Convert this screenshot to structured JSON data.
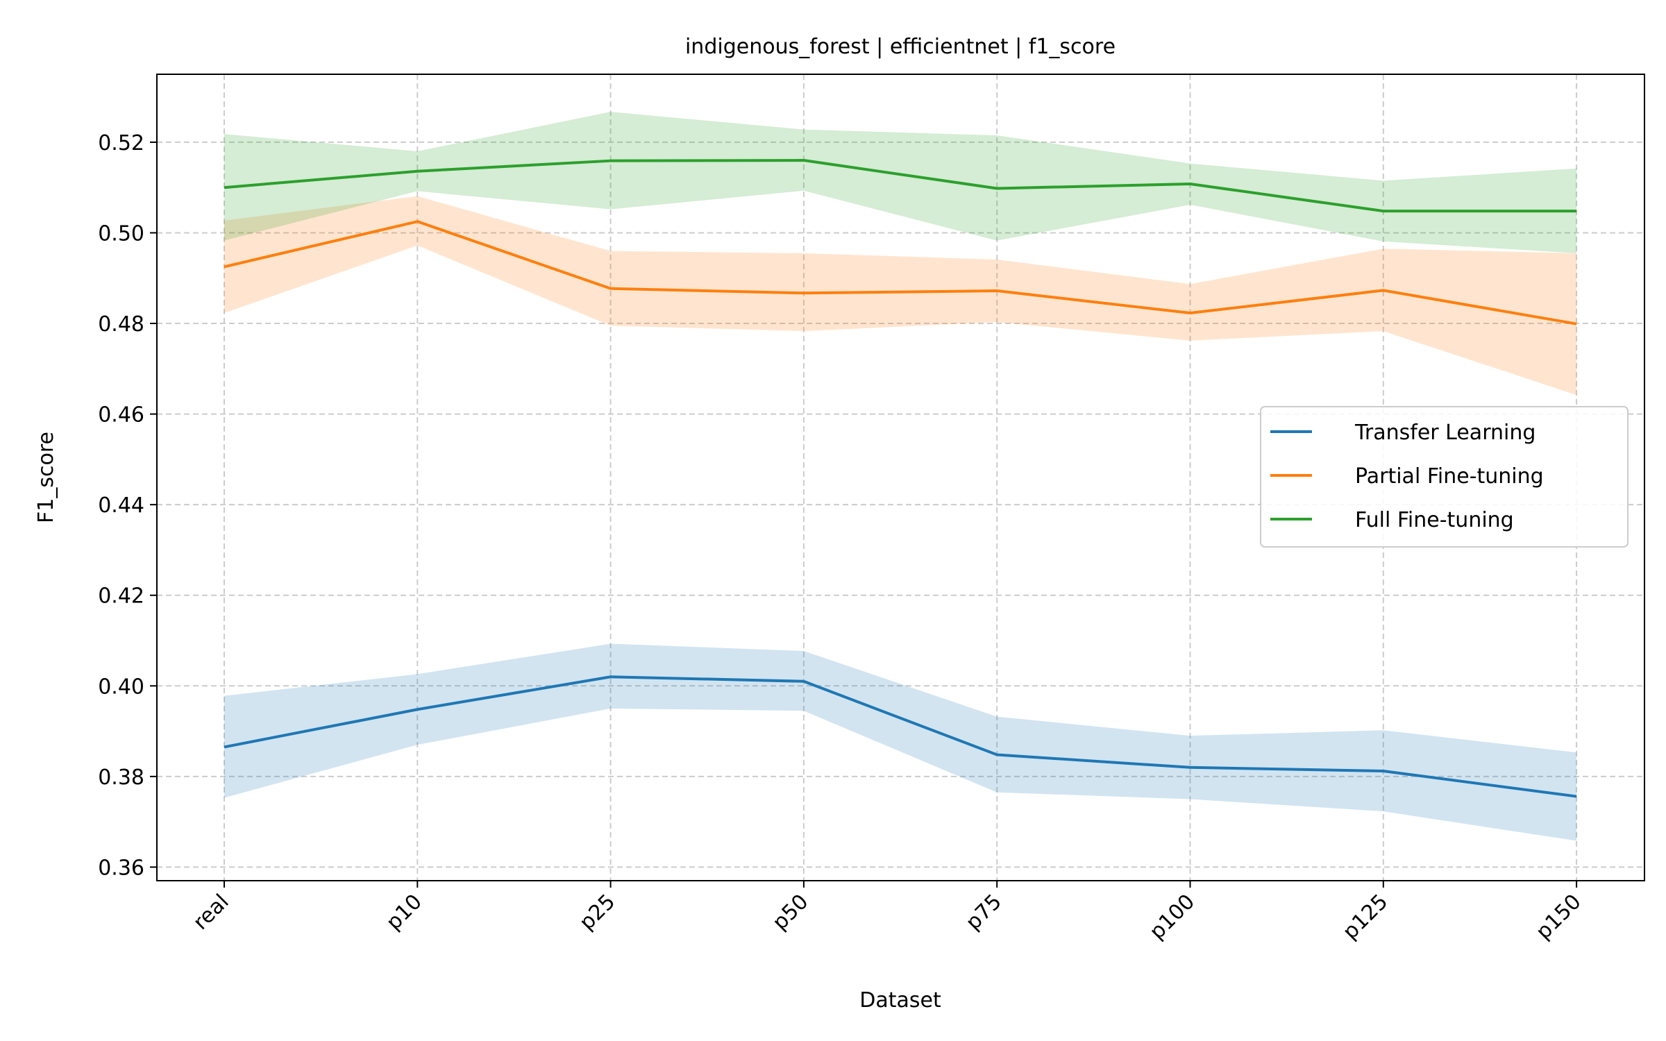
{
  "chart_data": {
    "type": "line",
    "title": "indigenous_forest | efficientnet | f1_score",
    "xlabel": "Dataset",
    "ylabel": "F1_score",
    "categories": [
      "real",
      "p10",
      "p25",
      "p50",
      "p75",
      "p100",
      "p125",
      "p150"
    ],
    "ylim": [
      0.357,
      0.535
    ],
    "yticks": [
      "0.36",
      "0.38",
      "0.40",
      "0.42",
      "0.44",
      "0.46",
      "0.48",
      "0.50",
      "0.52"
    ],
    "grid": true,
    "legend_position": "center-right",
    "series": [
      {
        "name": "Transfer Learning",
        "color": "#1f77b4",
        "values": [
          0.3865,
          0.3948,
          0.402,
          0.401,
          0.3848,
          0.382,
          0.3812,
          0.3756
        ],
        "lower": [
          0.3753,
          0.387,
          0.395,
          0.3945,
          0.3765,
          0.375,
          0.3723,
          0.3658
        ],
        "upper": [
          0.3978,
          0.4026,
          0.4093,
          0.4077,
          0.3932,
          0.389,
          0.3902,
          0.3853
        ]
      },
      {
        "name": "Partial Fine-tuning",
        "color": "#ff7f0e",
        "values": [
          0.4925,
          0.5025,
          0.4877,
          0.4867,
          0.4872,
          0.4823,
          0.4873,
          0.4799
        ],
        "lower": [
          0.4823,
          0.4972,
          0.4795,
          0.4783,
          0.4803,
          0.4762,
          0.4783,
          0.4642
        ],
        "upper": [
          0.5027,
          0.5081,
          0.496,
          0.4955,
          0.4941,
          0.4887,
          0.4965,
          0.4955
        ]
      },
      {
        "name": "Full Fine-tuning",
        "color": "#2ca02c",
        "values": [
          0.51,
          0.5136,
          0.5159,
          0.516,
          0.5098,
          0.5108,
          0.5048,
          0.5048
        ],
        "lower": [
          0.4983,
          0.5092,
          0.5052,
          0.5093,
          0.4983,
          0.5062,
          0.4981,
          0.4955
        ],
        "upper": [
          0.5218,
          0.518,
          0.5267,
          0.5228,
          0.5215,
          0.5153,
          0.5115,
          0.5142
        ]
      }
    ]
  }
}
